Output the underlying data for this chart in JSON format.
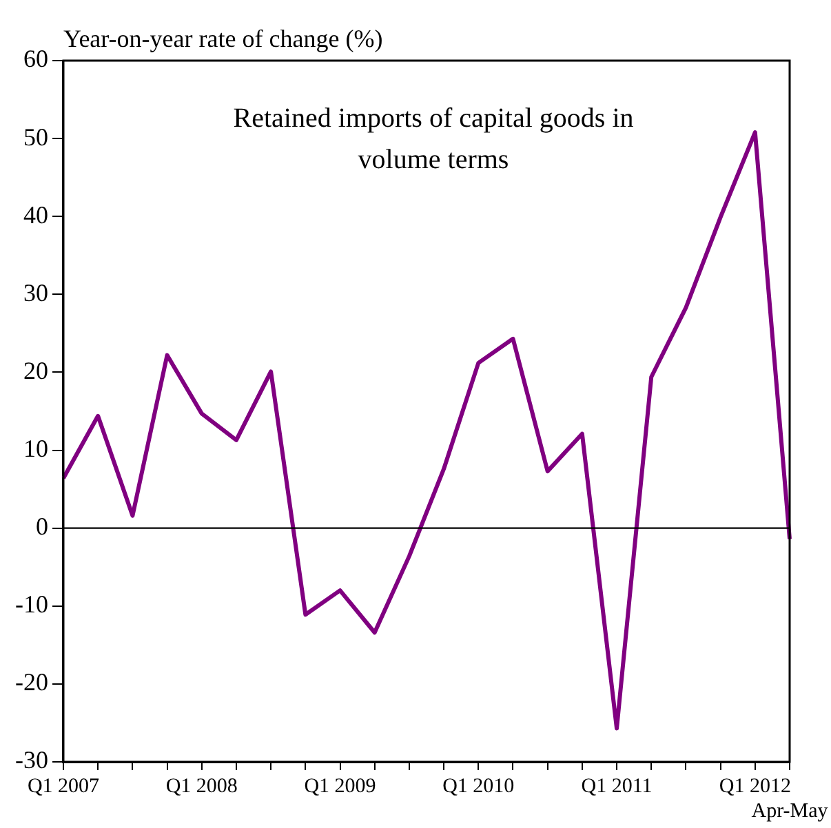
{
  "chart_data": {
    "type": "line",
    "title": "Retained imports of capital goods in volume terms",
    "ylabel": "Year-on-year rate of change (%)",
    "categories": [
      "Q1 2007",
      null,
      null,
      null,
      "Q1 2008",
      null,
      null,
      null,
      "Q1 2009",
      null,
      null,
      null,
      "Q1 2010",
      null,
      null,
      null,
      "Q1 2011",
      null,
      null,
      null,
      "Q1 2012",
      "Apr-May"
    ],
    "series": [
      {
        "color": "#800080",
        "values": [
          6.4,
          14.4,
          1.6,
          22.2,
          14.7,
          11.3,
          20.1,
          -11.1,
          -8.0,
          -13.4,
          -3.6,
          7.6,
          21.2,
          24.3,
          7.3,
          12.1,
          -25.7,
          19.4,
          28.3,
          39.9,
          50.8,
          -1.4
        ]
      }
    ],
    "ylim": [
      -30,
      60
    ],
    "yticks": [
      -30,
      -20,
      -10,
      0,
      10,
      20,
      30,
      40,
      50,
      60
    ],
    "ref_lines": [
      {
        "axis": "y",
        "value": 0,
        "color": "#000000"
      }
    ],
    "grid": false,
    "legend": false,
    "marker": "none",
    "line_style": "solid"
  }
}
